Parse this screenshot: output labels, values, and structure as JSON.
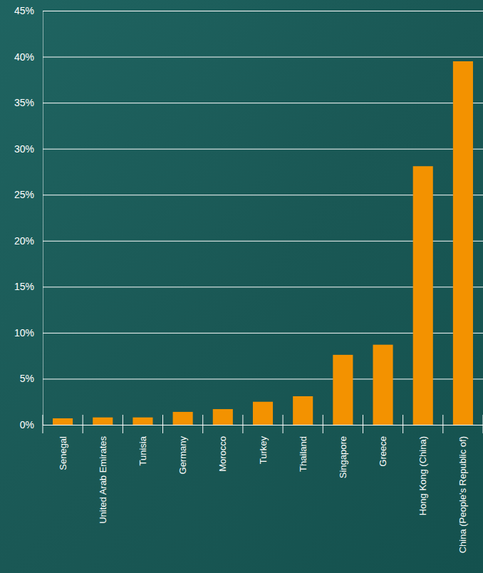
{
  "chart_data": {
    "type": "bar",
    "categories": [
      "Senegal",
      "United Arab Emirates",
      "Tunisia",
      "Germany",
      "Morocco",
      "Turkey",
      "Thailand",
      "Singapore",
      "Greece",
      "Hong Kong (China)",
      "China (People's Republic of)"
    ],
    "values": [
      0.7,
      0.8,
      0.8,
      1.4,
      1.7,
      2.5,
      3.1,
      7.6,
      8.7,
      28.1,
      39.5
    ],
    "color": "#f39200",
    "ylim": [
      0,
      45
    ],
    "yticks": [
      {
        "value": 0,
        "label": "0%"
      },
      {
        "value": 5,
        "label": "5%"
      },
      {
        "value": 10,
        "label": "10%"
      },
      {
        "value": 15,
        "label": "15%"
      },
      {
        "value": 20,
        "label": "20%"
      },
      {
        "value": 25,
        "label": "25%"
      },
      {
        "value": 30,
        "label": "30%"
      },
      {
        "value": 35,
        "label": "35%"
      },
      {
        "value": 40,
        "label": "40%"
      },
      {
        "value": 45,
        "label": "45%"
      }
    ],
    "grid": true
  }
}
